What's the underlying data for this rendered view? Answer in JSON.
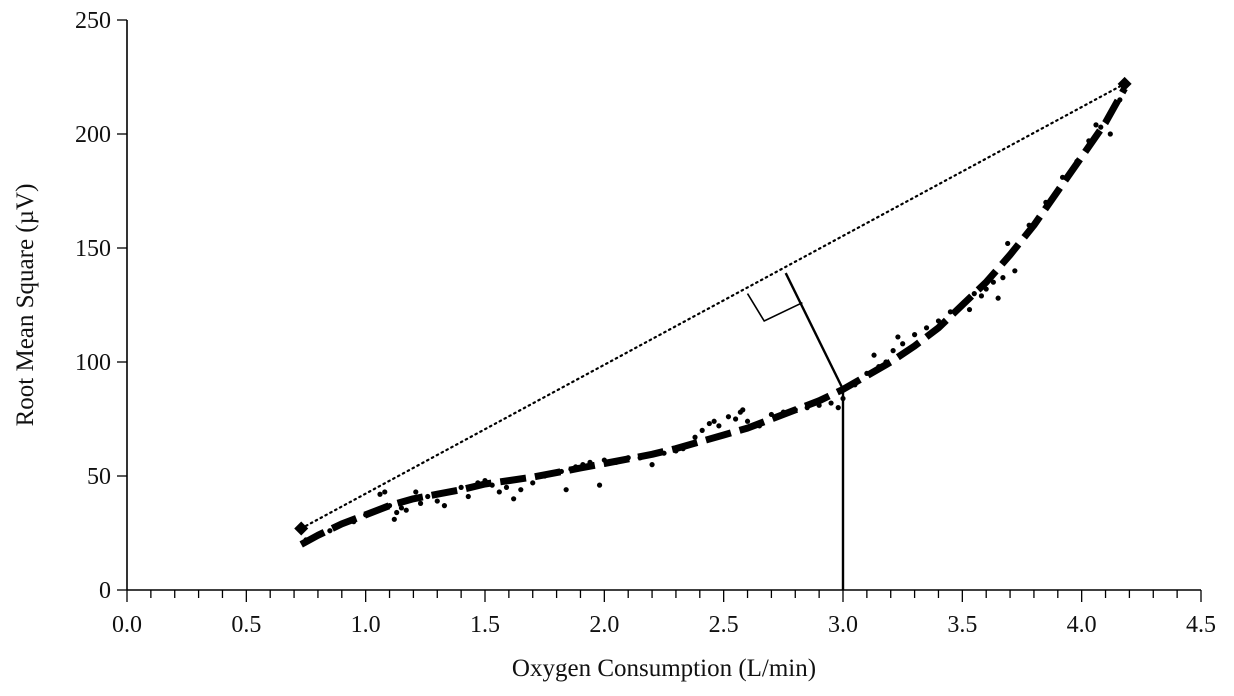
{
  "chart_data": {
    "type": "scatter",
    "title": "",
    "xlabel": "Oxygen Consumption (L/min)",
    "ylabel": "Root Mean Square (µV)",
    "xlim": [
      0,
      4.5
    ],
    "ylim": [
      0,
      250
    ],
    "x_major_ticks": [
      0,
      0.5,
      1.0,
      1.5,
      2.0,
      2.5,
      3.0,
      3.5,
      4.0,
      4.5
    ],
    "x_tick_labels": [
      "0.0",
      "0.5",
      "1.0",
      "1.5",
      "2.0",
      "2.5",
      "3.0",
      "3.5",
      "4.0",
      "4.5"
    ],
    "x_minor_step": 0.1,
    "y_major_ticks": [
      0,
      50,
      100,
      150,
      200,
      250
    ],
    "y_tick_labels": [
      "0",
      "50",
      "100",
      "150",
      "200",
      "250"
    ],
    "grid": false,
    "legend": "none",
    "series": [
      {
        "kind": "points",
        "x": [
          0.75,
          0.8,
          0.85,
          0.9,
          0.95,
          1.0,
          1.03,
          1.06,
          1.08,
          1.1,
          1.12,
          1.13,
          1.15,
          1.17,
          1.19,
          1.21,
          1.23,
          1.26,
          1.3,
          1.33,
          1.36,
          1.4,
          1.43,
          1.47,
          1.5,
          1.53,
          1.56,
          1.59,
          1.62,
          1.65,
          1.7,
          1.75,
          1.78,
          1.82,
          1.84,
          1.86,
          1.88,
          1.91,
          1.94,
          1.98,
          2.0,
          2.05,
          2.1,
          2.15,
          2.2,
          2.25,
          2.3,
          2.33,
          2.36,
          2.38,
          2.41,
          2.44,
          2.46,
          2.48,
          2.52,
          2.55,
          2.57,
          2.58,
          2.6,
          2.65,
          2.7,
          2.75,
          2.8,
          2.85,
          2.9,
          2.95,
          2.98,
          3.0,
          3.05,
          3.1,
          3.13,
          3.15,
          3.18,
          3.21,
          3.23,
          3.25,
          3.3,
          3.35,
          3.4,
          3.45,
          3.5,
          3.53,
          3.55,
          3.58,
          3.6,
          3.63,
          3.65,
          3.67,
          3.69,
          3.72,
          3.78,
          3.85,
          3.92,
          3.98,
          4.03,
          4.06,
          4.08,
          4.12,
          4.16,
          4.18
        ],
        "y": [
          22,
          24,
          26,
          29,
          30,
          33,
          34,
          42,
          43,
          37,
          31,
          34,
          36,
          35,
          40,
          43,
          38,
          41,
          39,
          37,
          43,
          45,
          41,
          47,
          48,
          46,
          43,
          45,
          40,
          44,
          47,
          50,
          51,
          52,
          44,
          53,
          54,
          55,
          56,
          46,
          57,
          56,
          58,
          58,
          55,
          60,
          61,
          62,
          64,
          67,
          70,
          73,
          74,
          72,
          76,
          75,
          78,
          79,
          74,
          72,
          77,
          78,
          79,
          80,
          81,
          82,
          80,
          84,
          90,
          95,
          103,
          98,
          100,
          105,
          111,
          108,
          112,
          115,
          118,
          122,
          125,
          123,
          130,
          129,
          132,
          135,
          128,
          137,
          152,
          140,
          160,
          170,
          181,
          188,
          197,
          204,
          203,
          200,
          215,
          222
        ]
      },
      {
        "kind": "dashed-fit",
        "x": [
          0.73,
          0.8,
          0.9,
          1.0,
          1.1,
          1.2,
          1.3,
          1.4,
          1.5,
          1.6,
          1.7,
          1.8,
          1.9,
          2.0,
          2.1,
          2.2,
          2.3,
          2.4,
          2.5,
          2.6,
          2.7,
          2.8,
          2.9,
          3.0,
          3.1,
          3.2,
          3.3,
          3.4,
          3.5,
          3.6,
          3.7,
          3.8,
          3.9,
          4.0,
          4.1,
          4.18
        ],
        "y": [
          20,
          24,
          29,
          33,
          37,
          40,
          42,
          44,
          46.5,
          48,
          49.5,
          51.5,
          53.5,
          55.5,
          57.5,
          59.5,
          62,
          65,
          68,
          71,
          75,
          79,
          83,
          88,
          94,
          100,
          107,
          115,
          125,
          135,
          147,
          160,
          175,
          190,
          205,
          220
        ]
      },
      {
        "kind": "dotted-line",
        "x": [
          0.73,
          4.18
        ],
        "y": [
          27,
          222
        ]
      },
      {
        "kind": "perpendicular",
        "x": [
          3.0,
          2.76
        ],
        "y": [
          88,
          139
        ]
      },
      {
        "kind": "vertical",
        "x": [
          3.0,
          3.0
        ],
        "y": [
          0,
          88
        ]
      },
      {
        "kind": "right-angle-marker",
        "x": [
          2.6,
          2.67,
          2.83
        ],
        "y": [
          130,
          118,
          126
        ]
      },
      {
        "kind": "endpoint-markers",
        "x": [
          0.73,
          4.18
        ],
        "y": [
          27,
          222
        ]
      }
    ]
  }
}
